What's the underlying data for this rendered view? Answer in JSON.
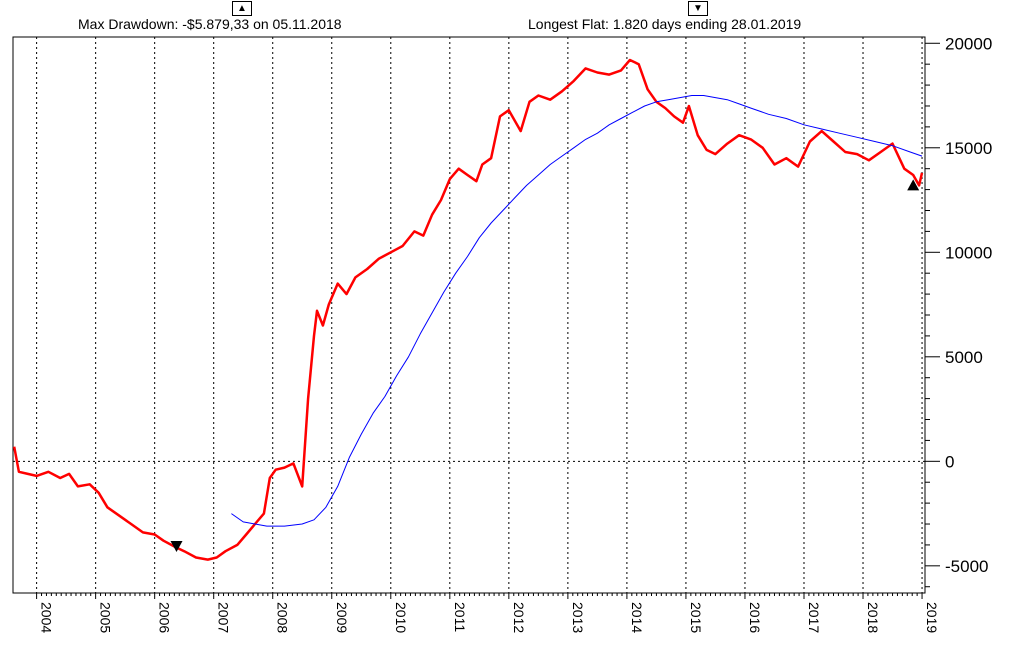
{
  "header": {
    "max_drawdown_text": "Max Drawdown: -$5.879,33 on 05.11.2018",
    "longest_flat_text": "Longest Flat: 1.820 days ending 28.01.2019",
    "drawdown_marker_glyph": "▲",
    "flat_marker_glyph": "▼"
  },
  "chart_data": {
    "type": "line",
    "title": "",
    "xlabel": "",
    "ylabel": "",
    "xlim": [
      2003.6,
      2019.05
    ],
    "ylim": [
      -6300,
      20300
    ],
    "x_ticks": [
      "2004",
      "2005",
      "2006",
      "2007",
      "2008",
      "2009",
      "2010",
      "2011",
      "2012",
      "2013",
      "2014",
      "2015",
      "2016",
      "2017",
      "2018",
      "2019"
    ],
    "y_ticks": [
      "20000",
      "15000",
      "10000",
      "5000",
      "0",
      "-5000"
    ],
    "y_tick_values": [
      20000,
      15000,
      10000,
      5000,
      0,
      -5000
    ],
    "grid": true,
    "zero_line": true,
    "series": [
      {
        "color": "#ff0000",
        "x": [
          2003.62,
          2003.7,
          2003.85,
          2004.0,
          2004.2,
          2004.4,
          2004.55,
          2004.7,
          2004.9,
          2005.05,
          2005.2,
          2005.4,
          2005.6,
          2005.8,
          2006.0,
          2006.15,
          2006.35,
          2006.5,
          2006.7,
          2006.9,
          2007.05,
          2007.2,
          2007.4,
          2007.55,
          2007.7,
          2007.85,
          2007.95,
          2008.05,
          2008.2,
          2008.35,
          2008.5,
          2008.6,
          2008.7,
          2008.75,
          2008.85,
          2008.95,
          2009.1,
          2009.25,
          2009.4,
          2009.6,
          2009.8,
          2010.0,
          2010.2,
          2010.4,
          2010.55,
          2010.7,
          2010.85,
          2011.0,
          2011.15,
          2011.3,
          2011.45,
          2011.55,
          2011.7,
          2011.85,
          2012.0,
          2012.2,
          2012.35,
          2012.5,
          2012.7,
          2012.9,
          2013.1,
          2013.3,
          2013.5,
          2013.7,
          2013.9,
          2014.05,
          2014.2,
          2014.35,
          2014.5,
          2014.65,
          2014.8,
          2014.95,
          2015.05,
          2015.2,
          2015.35,
          2015.5,
          2015.7,
          2015.9,
          2016.1,
          2016.3,
          2016.5,
          2016.7,
          2016.9,
          2017.1,
          2017.3,
          2017.5,
          2017.7,
          2017.9,
          2018.1,
          2018.3,
          2018.5,
          2018.7,
          2018.85,
          2018.95,
          2019.0
        ],
        "y": [
          700,
          -500,
          -600,
          -700,
          -500,
          -800,
          -600,
          -1200,
          -1100,
          -1500,
          -2200,
          -2600,
          -3000,
          -3400,
          -3500,
          -3800,
          -4100,
          -4300,
          -4600,
          -4700,
          -4600,
          -4300,
          -4000,
          -3500,
          -3000,
          -2500,
          -800,
          -400,
          -300,
          -100,
          -1200,
          3000,
          6000,
          7200,
          6500,
          7500,
          8500,
          8000,
          8800,
          9200,
          9700,
          10000,
          10300,
          11000,
          10800,
          11800,
          12500,
          13500,
          14000,
          13700,
          13400,
          14200,
          14500,
          16500,
          16800,
          15800,
          17200,
          17500,
          17300,
          17700,
          18200,
          18800,
          18600,
          18500,
          18700,
          19200,
          19000,
          17800,
          17200,
          16900,
          16500,
          16200,
          17000,
          15600,
          14900,
          14700,
          15200,
          15600,
          15400,
          15000,
          14200,
          14500,
          14100,
          15300,
          15800,
          15300,
          14800,
          14700,
          14400,
          14800,
          15200,
          14000,
          13700,
          13200,
          13800
        ]
      },
      {
        "color": "#0000ff",
        "x": [
          2007.3,
          2007.5,
          2007.7,
          2007.9,
          2008.2,
          2008.5,
          2008.7,
          2008.9,
          2009.1,
          2009.3,
          2009.5,
          2009.7,
          2009.9,
          2010.1,
          2010.3,
          2010.5,
          2010.7,
          2010.9,
          2011.1,
          2011.3,
          2011.5,
          2011.7,
          2011.9,
          2012.1,
          2012.3,
          2012.5,
          2012.7,
          2012.9,
          2013.1,
          2013.3,
          2013.5,
          2013.7,
          2013.9,
          2014.1,
          2014.3,
          2014.5,
          2014.7,
          2014.9,
          2015.1,
          2015.3,
          2015.5,
          2015.7,
          2015.9,
          2016.1,
          2016.4,
          2016.7,
          2017.0,
          2017.3,
          2017.6,
          2017.9,
          2018.2,
          2018.5,
          2018.8,
          2019.0
        ],
        "y": [
          -2500,
          -2900,
          -3000,
          -3100,
          -3100,
          -3000,
          -2800,
          -2200,
          -1200,
          200,
          1300,
          2300,
          3100,
          4100,
          5000,
          6100,
          7100,
          8100,
          9000,
          9800,
          10700,
          11400,
          12000,
          12600,
          13200,
          13700,
          14200,
          14600,
          15000,
          15400,
          15700,
          16100,
          16400,
          16700,
          17000,
          17200,
          17300,
          17400,
          17500,
          17500,
          17400,
          17300,
          17100,
          16900,
          16600,
          16400,
          16100,
          15900,
          15700,
          15500,
          15300,
          15100,
          14800,
          14600
        ]
      }
    ],
    "markers": [
      {
        "shape": "triangle-down",
        "x": 2006.37,
        "y": -4100
      },
      {
        "shape": "triangle-up",
        "x": 2018.85,
        "y": 13200
      }
    ]
  }
}
